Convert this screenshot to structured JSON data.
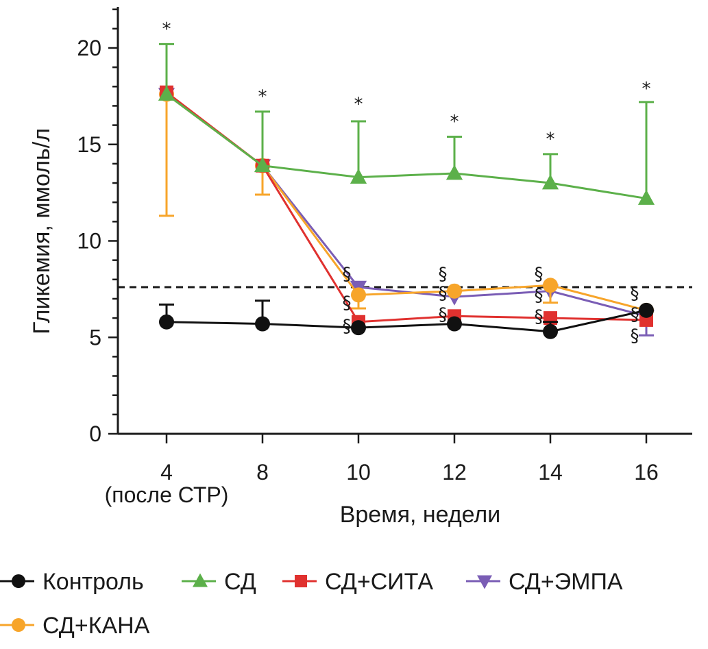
{
  "chart_data": {
    "type": "line",
    "xlabel": "Время, недели",
    "ylabel": "Гликемия, ммоль/л",
    "ylim": [
      0,
      22
    ],
    "yticks": [
      "0",
      "5",
      "10",
      "15",
      "20"
    ],
    "yticks_values": [
      0,
      5,
      10,
      15,
      20
    ],
    "categories": [
      "4",
      "8",
      "10",
      "12",
      "14",
      "16"
    ],
    "category_sublabels": [
      "(после СТР)",
      "",
      "",
      "",
      "",
      ""
    ],
    "threshold": 7.6,
    "series": [
      {
        "name": "Контроль",
        "color": "#111111",
        "marker": "circle",
        "values": [
          5.8,
          5.7,
          5.5,
          5.7,
          5.3,
          6.4
        ],
        "err_up": [
          6.7,
          6.9,
          null,
          null,
          5.8,
          null
        ],
        "err_down": [
          null,
          null,
          null,
          null,
          null,
          null
        ]
      },
      {
        "name": "СД",
        "color": "#5cb04a",
        "marker": "triangle-up",
        "values": [
          17.6,
          13.9,
          13.3,
          13.5,
          13.0,
          12.2
        ],
        "err_up": [
          20.2,
          16.7,
          16.2,
          15.4,
          14.5,
          17.2
        ],
        "err_down": [
          null,
          null,
          null,
          null,
          null,
          null
        ]
      },
      {
        "name": "СД+СИТА",
        "color": "#e0312f",
        "marker": "square",
        "values": [
          17.7,
          13.9,
          5.8,
          6.1,
          6.0,
          5.9
        ],
        "err_up": [
          null,
          null,
          null,
          null,
          null,
          null
        ],
        "err_down": [
          null,
          null,
          null,
          null,
          null,
          null
        ]
      },
      {
        "name": "СД+ЭМПА",
        "color": "#7a5db5",
        "marker": "triangle-down",
        "values": [
          17.6,
          13.9,
          7.6,
          7.1,
          7.4,
          6.1
        ],
        "err_up": [
          null,
          null,
          null,
          null,
          null,
          null
        ],
        "err_down": [
          null,
          null,
          null,
          null,
          null,
          5.1
        ]
      },
      {
        "name": "СД+КАНА",
        "color": "#f7a52a",
        "marker": "circle",
        "values": [
          17.6,
          13.9,
          7.2,
          7.4,
          7.7,
          6.4
        ],
        "err_up": [
          null,
          null,
          null,
          null,
          null,
          null
        ],
        "err_down": [
          11.3,
          12.4,
          6.5,
          null,
          6.8,
          null
        ]
      }
    ],
    "sig_markers": [
      {
        "text": "*",
        "x": "4",
        "y": 21.0
      },
      {
        "text": "*",
        "x": "8",
        "y": 17.5
      },
      {
        "text": "*",
        "x": "10",
        "y": 17.1
      },
      {
        "text": "*",
        "x": "12",
        "y": 16.2
      },
      {
        "text": "*",
        "x": "14",
        "y": 15.3
      },
      {
        "text": "*",
        "x": "16",
        "y": 17.9
      },
      {
        "text": "§",
        "x": "10",
        "y": 8.3
      },
      {
        "text": "§",
        "x": "10",
        "y": 6.8
      },
      {
        "text": "§",
        "x": "10",
        "y": 5.6
      },
      {
        "text": "§",
        "x": "12",
        "y": 8.3
      },
      {
        "text": "§",
        "x": "12",
        "y": 7.3
      },
      {
        "text": "§",
        "x": "12",
        "y": 6.2
      },
      {
        "text": "§",
        "x": "14",
        "y": 8.3
      },
      {
        "text": "§",
        "x": "14",
        "y": 7.2
      },
      {
        "text": "§",
        "x": "14",
        "y": 6.1
      },
      {
        "text": "§",
        "x": "16",
        "y": 7.3
      },
      {
        "text": "§",
        "x": "16",
        "y": 6.2
      },
      {
        "text": "§",
        "x": "16",
        "y": 5.1
      }
    ]
  }
}
